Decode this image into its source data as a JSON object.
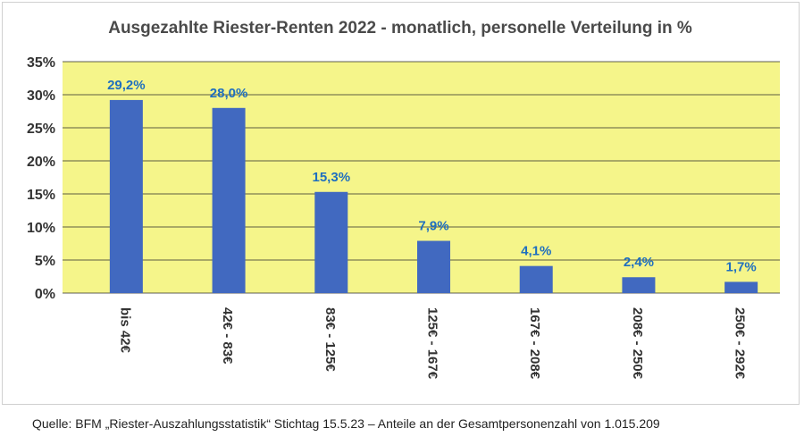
{
  "chart_data": {
    "type": "bar",
    "title": "Ausgezahlte Riester-Renten 2022 - monatlich, personelle Verteilung in %",
    "categories": [
      "bis 42€",
      "42€ - 83€",
      "83€ - 125€",
      "125€ - 167€",
      "167€ - 208€",
      "208€ - 250€",
      "250€ - 292€"
    ],
    "values": [
      29.2,
      28.0,
      15.3,
      7.9,
      4.1,
      2.4,
      1.7
    ],
    "value_labels": [
      "29,2%",
      "28,0%",
      "15,3%",
      "7,9%",
      "4,1%",
      "2,4%",
      "1,7%"
    ],
    "yticks": [
      "0%",
      "5%",
      "10%",
      "15%",
      "20%",
      "25%",
      "30%",
      "35%"
    ],
    "ylim": [
      0,
      35
    ],
    "grid": true,
    "colors": {
      "bar": "#4169c0",
      "label": "#1f6fbf",
      "plot_bg": "#f5f58a",
      "grid": "#2a2a2a"
    }
  },
  "source": "Quelle: BFM „Riester-Auszahlungsstatistik“ Stichtag 15.5.23 – Anteile an der Gesamtpersonenzahl von 1.015.209"
}
